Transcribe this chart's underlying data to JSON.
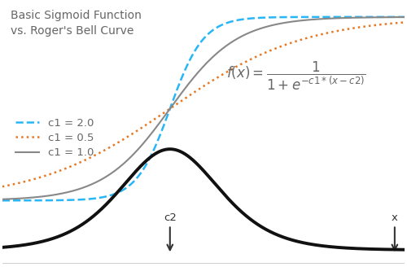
{
  "title_line1": "Basic Sigmoid Function",
  "title_line2": "vs. Roger's Bell Curve",
  "x_min": -2,
  "x_max": 10,
  "c2": 3.0,
  "c1_values": [
    2.0,
    0.5,
    1.0
  ],
  "c1_labels": [
    "c1 = 2.0",
    "c1 = 0.5",
    "c1 = 1.0"
  ],
  "sigmoid_colors": [
    "#29B6F6",
    "#E87722",
    "#888888"
  ],
  "sigmoid_styles": [
    "--",
    ":",
    "-"
  ],
  "sigmoid_linewidths": [
    1.8,
    1.8,
    1.5
  ],
  "bell_color": "#111111",
  "bell_linewidth": 2.8,
  "bell_scale": 1.0,
  "ylim_min": -0.35,
  "ylim_max": 1.08,
  "background_color": "#ffffff",
  "text_color": "#666666",
  "annotation_color": "#333333",
  "title_fontsize": 10,
  "legend_fontsize": 9.5,
  "formula_fontsize": 12
}
